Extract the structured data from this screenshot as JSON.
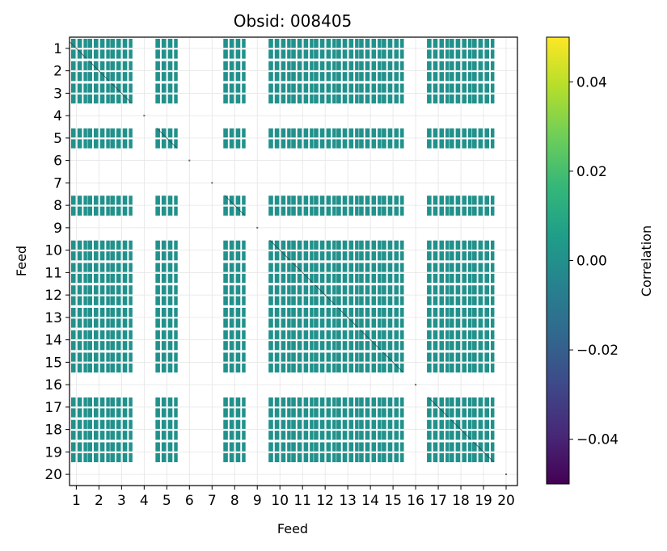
{
  "chart_data": {
    "type": "heatmap",
    "title": "Obsid: 008405",
    "xlabel": "Feed",
    "ylabel": "Feed",
    "feeds": [
      "1",
      "2",
      "3",
      "4",
      "5",
      "6",
      "7",
      "8",
      "9",
      "10",
      "11",
      "12",
      "13",
      "14",
      "15",
      "16",
      "17",
      "18",
      "19",
      "20"
    ],
    "xlim": [
      0.7,
      20.5
    ],
    "ylim": [
      0.5,
      20.5
    ],
    "grid": true,
    "active_feeds": [
      1,
      2,
      3,
      5,
      8,
      10,
      11,
      12,
      13,
      14,
      15,
      17,
      18,
      19
    ],
    "dead_feeds": [
      4,
      6,
      7,
      9,
      16,
      20
    ],
    "cell_value": 0.0,
    "cell_color": "#21918c",
    "colorbar": {
      "label": "Correlation",
      "vmin": -0.05,
      "vmax": 0.05,
      "ticks": [
        0.04,
        0.02,
        0.0,
        -0.02,
        -0.04
      ],
      "tick_labels": [
        "0.04",
        "0.02",
        "0.00",
        "−0.02",
        "−0.04"
      ],
      "colors": [
        "#440154",
        "#482878",
        "#3e4989",
        "#31688e",
        "#26828e",
        "#1f9e89",
        "#35b779",
        "#6ece58",
        "#b5de2b",
        "#fde725"
      ]
    }
  }
}
